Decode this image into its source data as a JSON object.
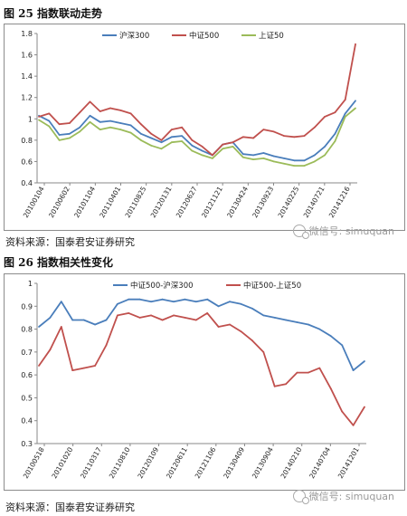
{
  "fig1": {
    "title": "图 25  指数联动走势",
    "source": "资料来源：国泰君安证券研究",
    "watermark": "微信号: simuquan"
  },
  "fig2": {
    "title": "图 26  指数相关性变化",
    "source": "资料来源：国泰君安证券研究",
    "watermark": "微信号: simuquan"
  },
  "chart_data": [
    {
      "type": "line",
      "title": "",
      "xlabel": "",
      "ylabel": "",
      "ylim": [
        0.4,
        1.8
      ],
      "yticks": [
        0.4,
        0.6,
        0.8,
        1.0,
        1.2,
        1.4,
        1.6,
        1.8
      ],
      "ytick_labels": [
        "0.4",
        "0.6",
        "0.8",
        "1",
        "1.2",
        "1.4",
        "1.6",
        "1.8"
      ],
      "grid": false,
      "legend_position": "top",
      "x_tick_labels": [
        "20100104",
        "20100602",
        "20101104",
        "20110401",
        "20110825",
        "20120131",
        "20120627",
        "20121121",
        "20130424",
        "20130923",
        "20140225",
        "20140721",
        "20141216"
      ],
      "x": [
        "2010-01",
        "2010-03",
        "2010-05",
        "2010-07",
        "2010-09",
        "2010-11",
        "2011-01",
        "2011-03",
        "2011-05",
        "2011-07",
        "2011-09",
        "2011-11",
        "2012-01",
        "2012-03",
        "2012-05",
        "2012-07",
        "2012-09",
        "2012-11",
        "2013-01",
        "2013-03",
        "2013-05",
        "2013-07",
        "2013-09",
        "2013-11",
        "2014-01",
        "2014-03",
        "2014-05",
        "2014-07",
        "2014-09",
        "2014-11",
        "2015-01",
        "2015-03"
      ],
      "series": [
        {
          "name": "沪深300",
          "color": "#4a7ebb",
          "values": [
            1.03,
            0.98,
            0.85,
            0.86,
            0.92,
            1.03,
            0.97,
            0.98,
            0.96,
            0.94,
            0.86,
            0.82,
            0.78,
            0.83,
            0.84,
            0.75,
            0.7,
            0.66,
            0.76,
            0.78,
            0.67,
            0.66,
            0.68,
            0.65,
            0.63,
            0.61,
            0.61,
            0.66,
            0.74,
            0.86,
            1.05,
            1.17
          ]
        },
        {
          "name": "中证500",
          "color": "#c0504d",
          "values": [
            1.02,
            1.05,
            0.95,
            0.96,
            1.06,
            1.16,
            1.07,
            1.1,
            1.08,
            1.05,
            0.95,
            0.86,
            0.8,
            0.9,
            0.92,
            0.8,
            0.74,
            0.66,
            0.76,
            0.78,
            0.83,
            0.82,
            0.9,
            0.88,
            0.84,
            0.83,
            0.84,
            0.92,
            1.02,
            1.06,
            1.18,
            1.7
          ]
        },
        {
          "name": "上证50",
          "color": "#9bbb59",
          "values": [
            0.99,
            0.93,
            0.8,
            0.82,
            0.88,
            0.97,
            0.9,
            0.92,
            0.9,
            0.87,
            0.8,
            0.75,
            0.72,
            0.78,
            0.79,
            0.7,
            0.66,
            0.63,
            0.72,
            0.74,
            0.64,
            0.62,
            0.63,
            0.6,
            0.58,
            0.56,
            0.56,
            0.6,
            0.66,
            0.79,
            1.02,
            1.1
          ]
        }
      ]
    },
    {
      "type": "line",
      "title": "",
      "xlabel": "",
      "ylabel": "",
      "ylim": [
        0.3,
        1.0
      ],
      "yticks": [
        0.3,
        0.4,
        0.5,
        0.6,
        0.7,
        0.8,
        0.9,
        1.0
      ],
      "ytick_labels": [
        "0.3",
        "0.4",
        "0.5",
        "0.6",
        "0.7",
        "0.8",
        "0.9",
        "1"
      ],
      "grid": false,
      "legend_position": "top",
      "x_tick_labels": [
        "20100518",
        "20101020",
        "20110317",
        "20110810",
        "20120109",
        "20120611",
        "20121106",
        "20130409",
        "20130904",
        "20140210",
        "20140704",
        "20141201"
      ],
      "x": [
        "2010-05",
        "2010-07",
        "2010-09",
        "2010-11",
        "2011-01",
        "2011-03",
        "2011-05",
        "2011-07",
        "2011-09",
        "2011-11",
        "2012-01",
        "2012-03",
        "2012-05",
        "2012-07",
        "2012-09",
        "2012-11",
        "2013-01",
        "2013-03",
        "2013-05",
        "2013-07",
        "2013-09",
        "2013-11",
        "2014-01",
        "2014-03",
        "2014-05",
        "2014-07",
        "2014-09",
        "2014-11",
        "2015-01",
        "2015-03"
      ],
      "series": [
        {
          "name": "中证500-沪深300",
          "color": "#4a7ebb",
          "values": [
            0.81,
            0.85,
            0.92,
            0.84,
            0.84,
            0.82,
            0.84,
            0.91,
            0.93,
            0.93,
            0.92,
            0.93,
            0.92,
            0.93,
            0.92,
            0.93,
            0.9,
            0.92,
            0.91,
            0.89,
            0.86,
            0.85,
            0.84,
            0.83,
            0.82,
            0.8,
            0.77,
            0.73,
            0.62,
            0.66
          ]
        },
        {
          "name": "中证500-上证50",
          "color": "#c0504d",
          "values": [
            0.64,
            0.71,
            0.81,
            0.62,
            0.63,
            0.64,
            0.73,
            0.86,
            0.87,
            0.85,
            0.86,
            0.84,
            0.86,
            0.85,
            0.84,
            0.87,
            0.81,
            0.82,
            0.79,
            0.75,
            0.7,
            0.55,
            0.56,
            0.61,
            0.61,
            0.63,
            0.54,
            0.44,
            0.38,
            0.46
          ]
        }
      ]
    }
  ]
}
